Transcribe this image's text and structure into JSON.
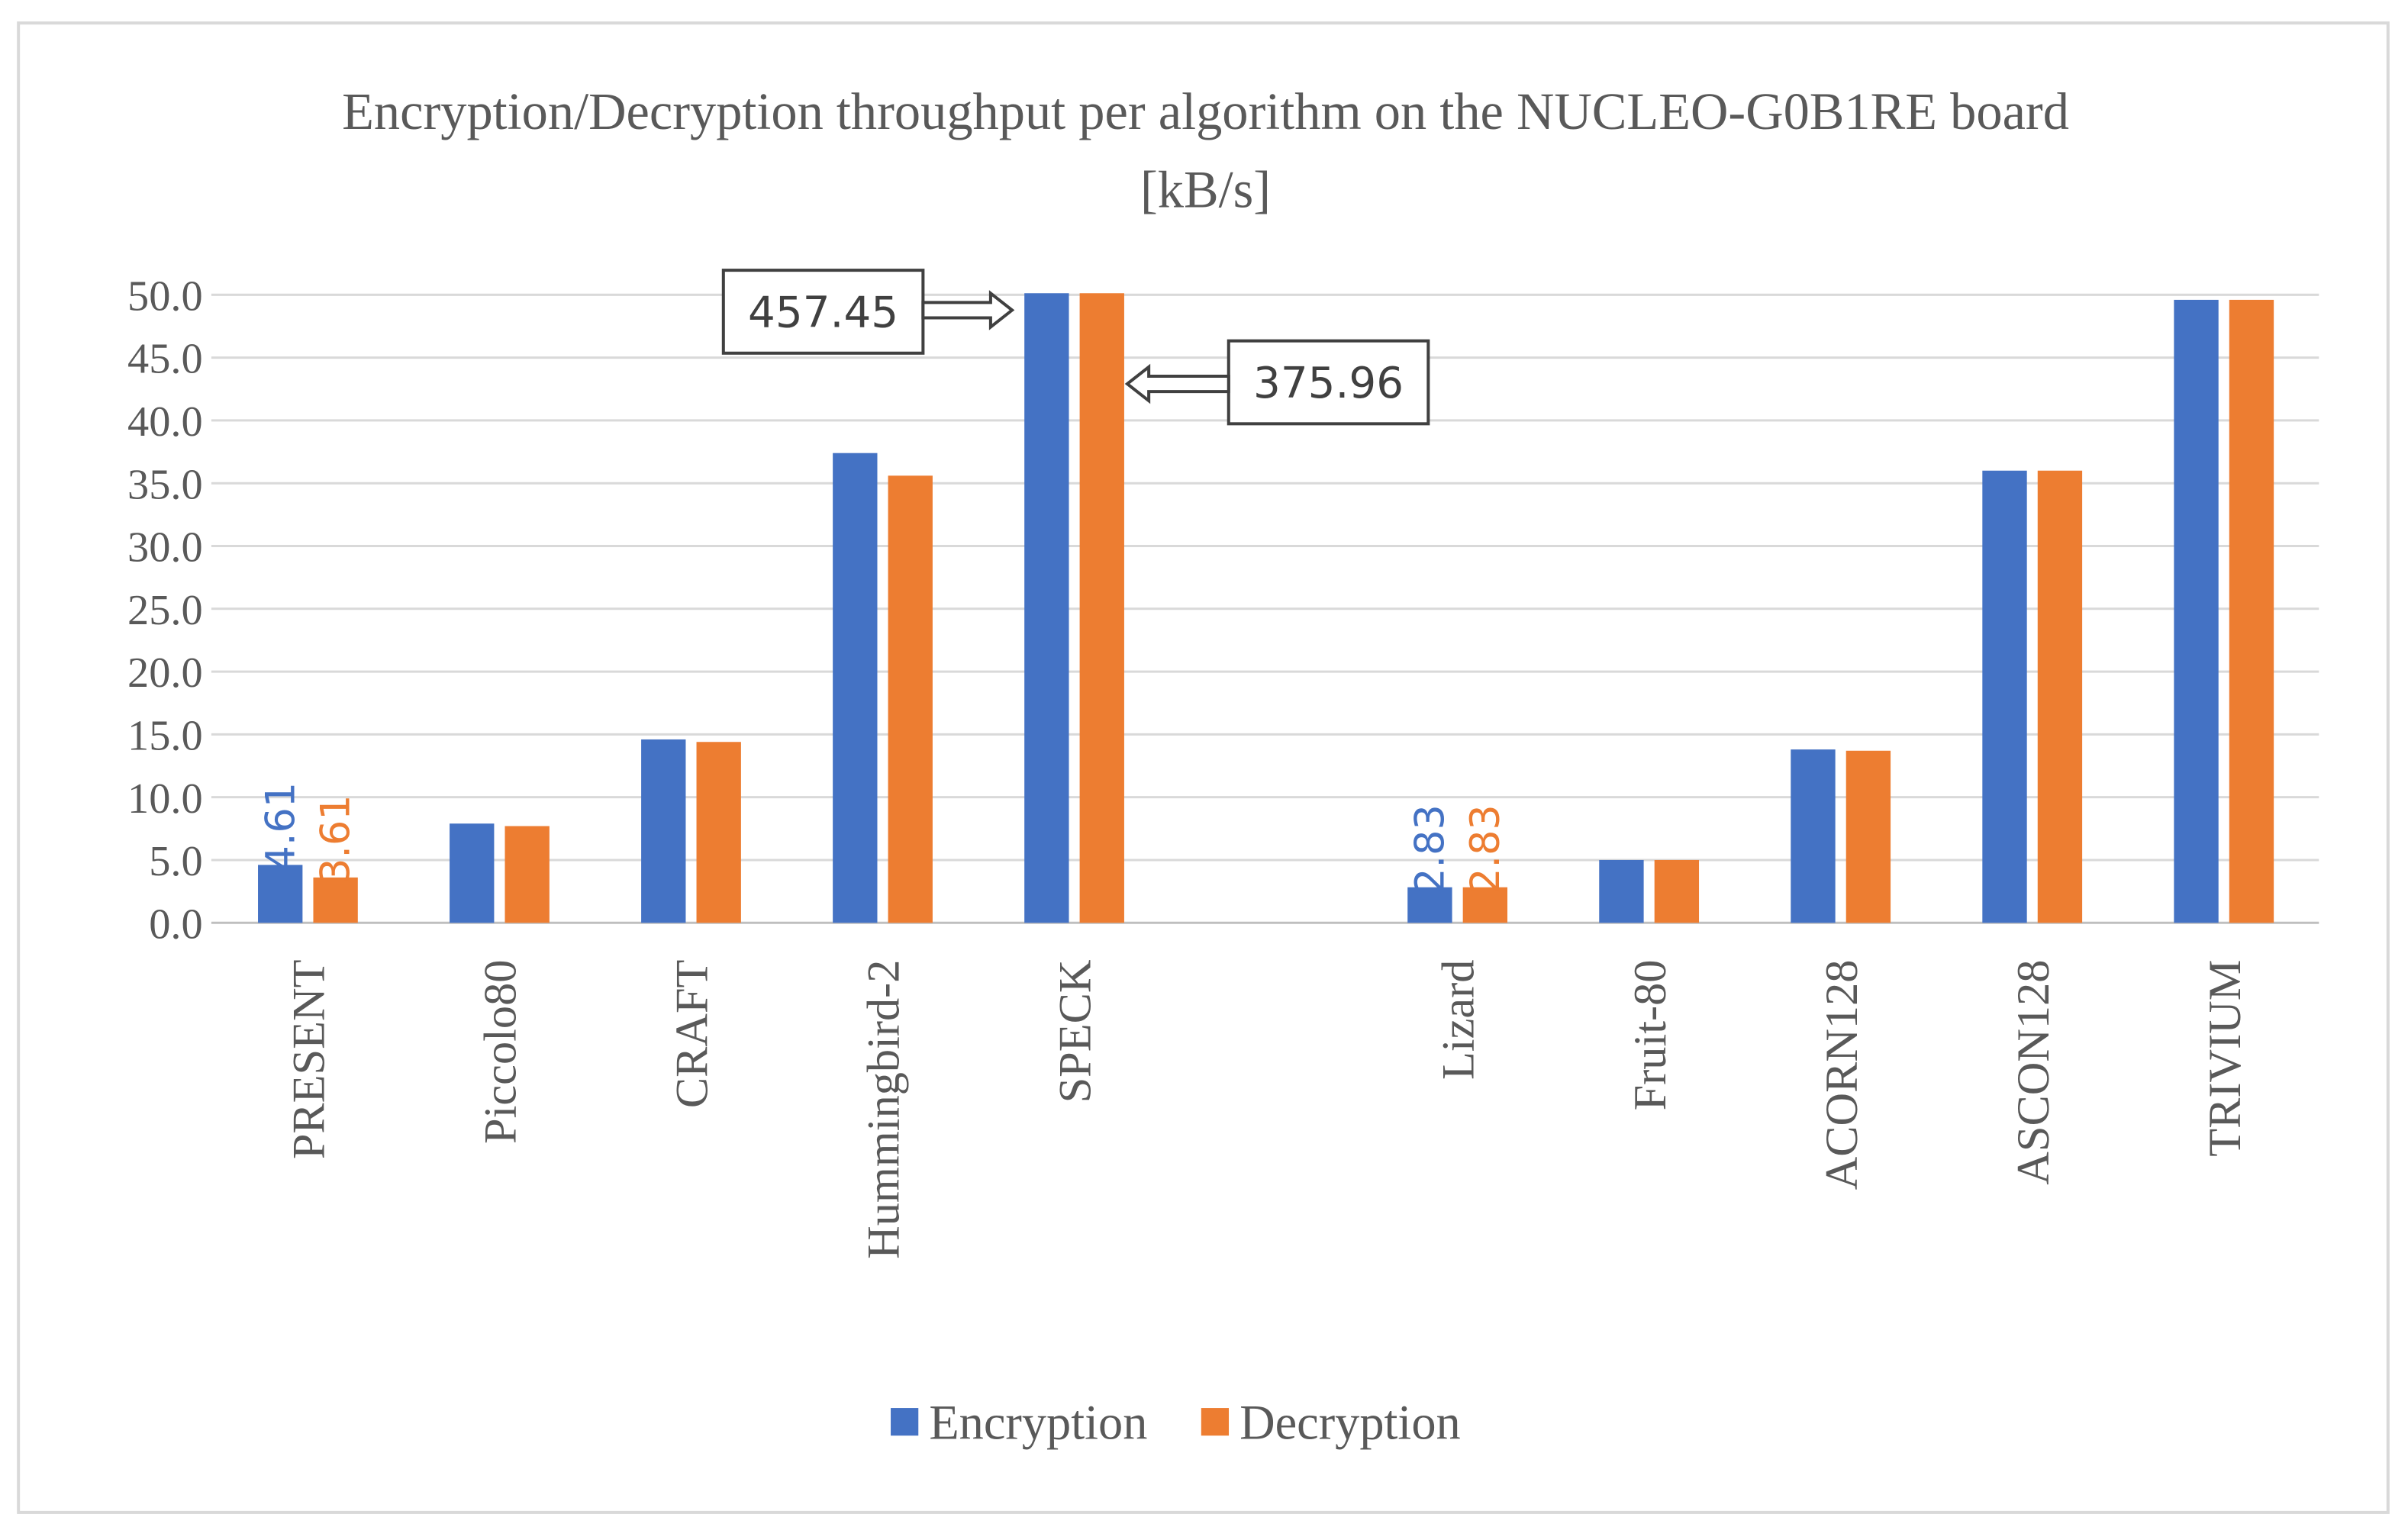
{
  "chart_data": {
    "type": "bar",
    "title": "Encryption/Decryption throughput per algorithm on the NUCLEO-G0B1RE board [kB/s]",
    "categories": [
      "PRESENT",
      "Piccolo80",
      "CRAFT",
      "Hummingbird-2",
      "SPECK",
      null,
      "Lizard",
      "Fruit-80",
      "ACORN128",
      "ASCON128",
      "TRIVIUM"
    ],
    "series": [
      {
        "name": "Encryption",
        "color": "#4472c4",
        "values": [
          4.61,
          7.9,
          14.6,
          37.4,
          457.45,
          null,
          2.83,
          5.0,
          13.8,
          36.0,
          49.6
        ],
        "value_labels": [
          "4.61",
          null,
          null,
          null,
          "457.45",
          null,
          "2.83",
          null,
          null,
          null,
          null
        ]
      },
      {
        "name": "Decryption",
        "color": "#ed7d31",
        "values": [
          3.61,
          7.7,
          14.4,
          35.6,
          375.96,
          null,
          2.83,
          5.0,
          13.7,
          36.0,
          49.6
        ],
        "value_labels": [
          "3.61",
          null,
          null,
          null,
          "375.96",
          null,
          "2.83",
          null,
          null,
          null,
          null
        ]
      }
    ],
    "ylim": [
      0,
      50
    ],
    "yticks": [
      {
        "value": 0,
        "label": "0.0"
      },
      {
        "value": 5,
        "label": "5.0"
      },
      {
        "value": 10,
        "label": "10.0"
      },
      {
        "value": 15,
        "label": "15.0"
      },
      {
        "value": 20,
        "label": "20.0"
      },
      {
        "value": 25,
        "label": "25.0"
      },
      {
        "value": 30,
        "label": "30.0"
      },
      {
        "value": 35,
        "label": "35.0"
      },
      {
        "value": 40,
        "label": "40.0"
      },
      {
        "value": 45,
        "label": "45.0"
      },
      {
        "value": 50,
        "label": "50.0"
      }
    ],
    "grid": true,
    "legend": "bottom"
  }
}
